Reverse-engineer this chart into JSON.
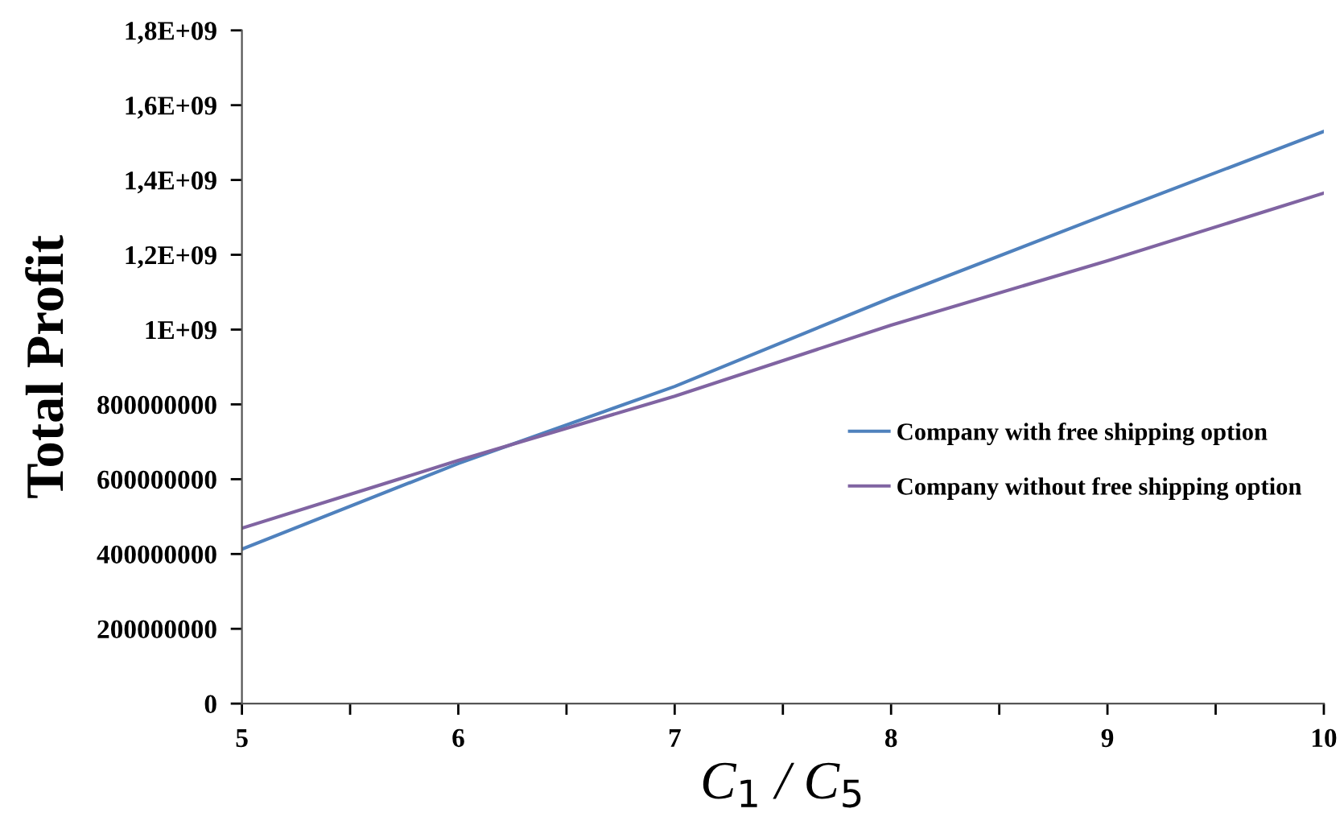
{
  "chart_data": {
    "type": "line",
    "xlabel": "C$_{1}$ / C$_{5}$",
    "ylabel": "Total Profit",
    "x": [
      5,
      6,
      7,
      8,
      9,
      10
    ],
    "series": [
      {
        "name": "Company with free shipping option",
        "color": "#4f81bd",
        "values": [
          413000000,
          642000000,
          848000000,
          1085000000,
          1309000000,
          1530000000
        ]
      },
      {
        "name": "Company without free shipping option",
        "color": "#8064a2",
        "values": [
          469000000,
          650000000,
          822000000,
          1012000000,
          1184000000,
          1365000000
        ]
      }
    ],
    "xlim": [
      5,
      10
    ],
    "xticks": [
      5,
      {
        "value": 5.5,
        "label": null
      },
      6,
      {
        "value": 6.5,
        "label": null
      },
      7,
      {
        "value": 7.5,
        "label": null
      },
      8,
      {
        "value": 8.5,
        "label": null
      },
      9,
      {
        "value": 9.5,
        "label": null
      },
      10
    ],
    "ylim": [
      0,
      1800000000
    ],
    "yticks": [
      0,
      {
        "value": 200000000,
        "label": "200000000"
      },
      {
        "value": 400000000,
        "label": "400000000"
      },
      {
        "value": 600000000,
        "label": "600000000"
      },
      {
        "value": 800000000,
        "label": "800000000"
      },
      {
        "value": 1000000000,
        "label": "1E+09"
      },
      {
        "value": 1200000000,
        "label": "1,2E+09"
      },
      {
        "value": 1400000000,
        "label": "1,4E+09"
      },
      {
        "value": 1600000000,
        "label": "1,6E+09"
      },
      {
        "value": 1800000000,
        "label": "1,8E+09"
      }
    ],
    "legend": "right",
    "grid": false
  }
}
